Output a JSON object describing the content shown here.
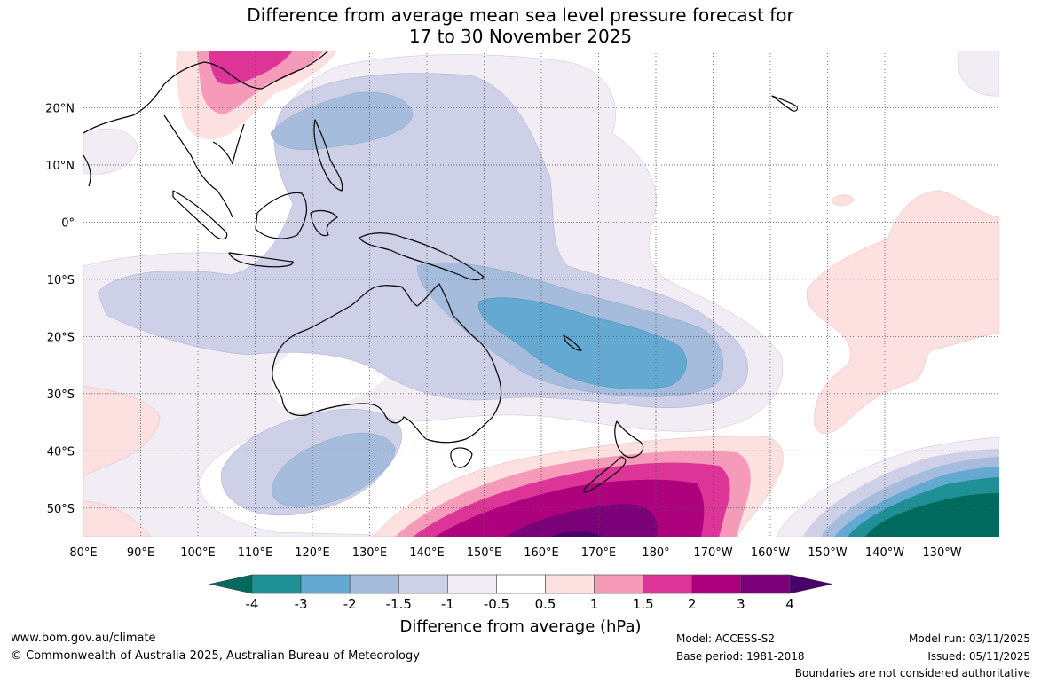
{
  "title": {
    "line1": "Difference from average mean sea level pressure forecast for",
    "line2": "17 to 30 November 2025"
  },
  "map": {
    "lon_labels": [
      "80°E",
      "90°E",
      "100°E",
      "110°E",
      "120°E",
      "130°E",
      "140°E",
      "150°E",
      "160°E",
      "170°E",
      "180°",
      "170°W",
      "160°W",
      "150°W",
      "140°W",
      "130°W"
    ],
    "lat_labels": [
      "20°N",
      "10°N",
      "0°",
      "10°S",
      "20°S",
      "30°S",
      "40°S",
      "50°S"
    ],
    "lon_range_deg_east": [
      80,
      240
    ],
    "lat_range_deg": [
      -55,
      30
    ]
  },
  "colorbar": {
    "title": "Difference from average (hPa)",
    "tick_labels": [
      "-4",
      "-3",
      "-2",
      "-1.5",
      "-1",
      "-0.5",
      "0.5",
      "1",
      "1.5",
      "2",
      "3",
      "4"
    ],
    "colors": [
      "#006a5e",
      "#1f9196",
      "#63a9d2",
      "#a6bcdc",
      "#cdd0e6",
      "#f2ecf5",
      "#ffffff",
      "#fde0e0",
      "#f59ab8",
      "#dd3497",
      "#ae017e",
      "#7a0177",
      "#49006a"
    ]
  },
  "footer": {
    "website": "www.bom.gov.au/climate",
    "copyright": "© Commonwealth of Australia 2025, Australian Bureau of Meteorology",
    "model": "Model: ACCESS-S2",
    "base_period": "Base period: 1981-2018",
    "model_run": "Model run: 03/11/2025",
    "issued": "Issued: 05/11/2025",
    "disclaimer": "Boundaries are not considered authoritative"
  }
}
